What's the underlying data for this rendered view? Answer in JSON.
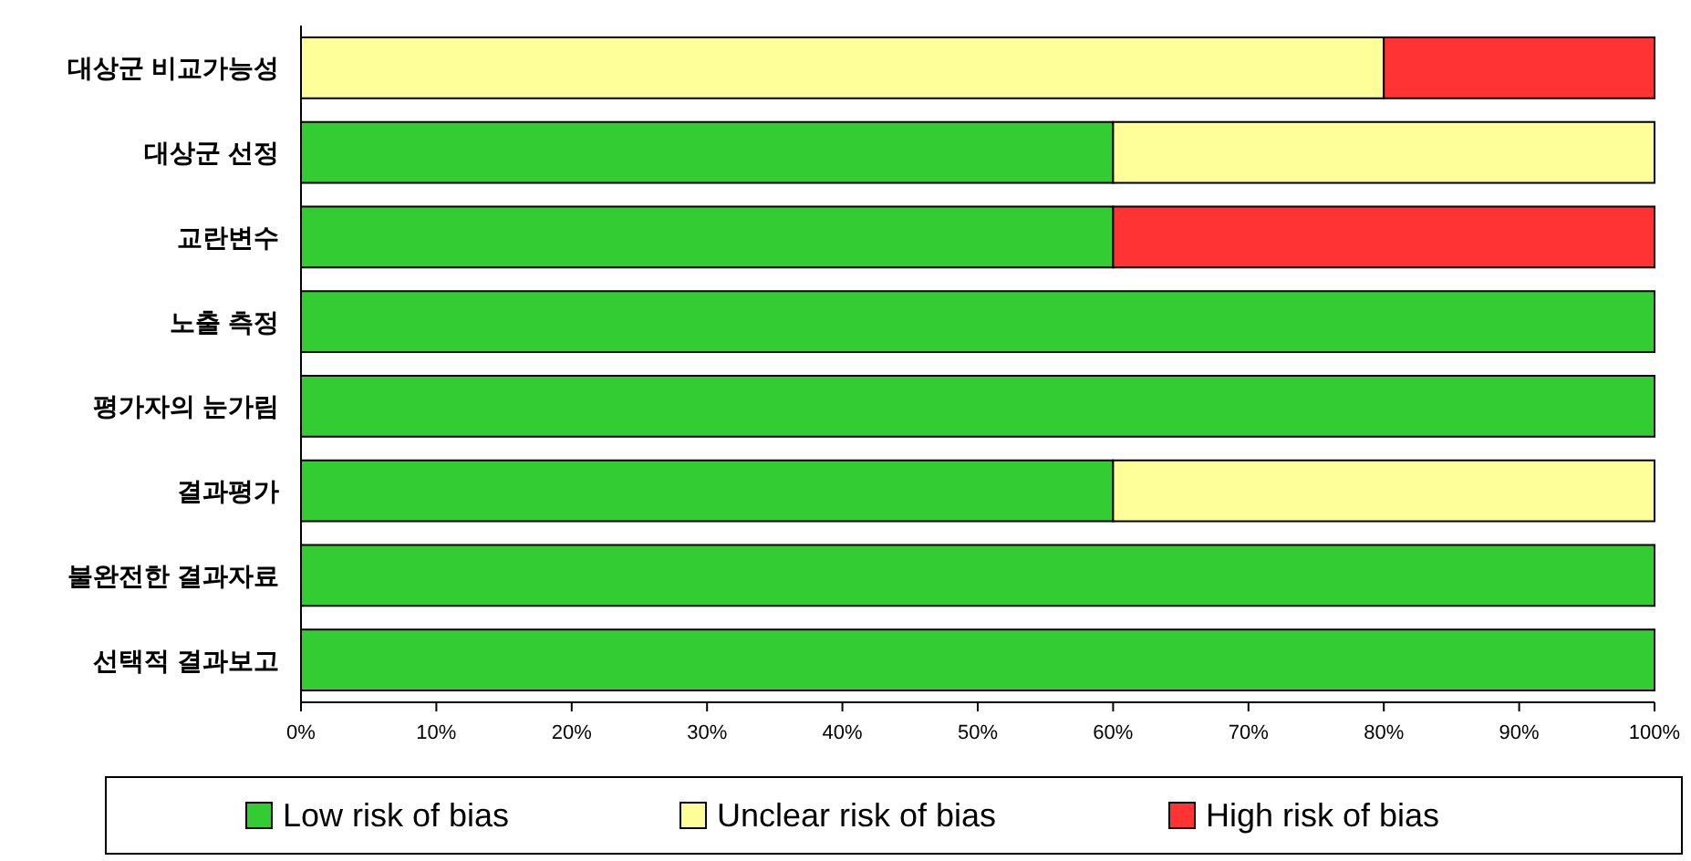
{
  "chart_data": {
    "type": "bar",
    "orientation": "horizontal",
    "stacked": true,
    "categories": [
      "대상군 비교가능성",
      "대상군 선정",
      "교란변수",
      "노출 측정",
      "평가자의 눈가림",
      "결과평가",
      "불완전한 결과자료",
      "선택적 결과보고"
    ],
    "series": [
      {
        "name": "Low risk of bias",
        "color": "#33cc33",
        "values": [
          0,
          60,
          60,
          100,
          100,
          60,
          100,
          100
        ]
      },
      {
        "name": "Unclear risk of bias",
        "color": "#ffff99",
        "values": [
          80,
          40,
          0,
          0,
          0,
          40,
          0,
          0
        ]
      },
      {
        "name": "High risk of bias",
        "color": "#ff3333",
        "values": [
          20,
          0,
          40,
          0,
          0,
          0,
          0,
          0
        ]
      }
    ],
    "xlim": [
      0,
      100
    ],
    "xticks": [
      {
        "value": 0,
        "label": "0%"
      },
      {
        "value": 10,
        "label": "10%"
      },
      {
        "value": 20,
        "label": "20%"
      },
      {
        "value": 30,
        "label": "30%"
      },
      {
        "value": 40,
        "label": "40%"
      },
      {
        "value": 50,
        "label": "50%"
      },
      {
        "value": 60,
        "label": "60%"
      },
      {
        "value": 70,
        "label": "70%"
      },
      {
        "value": 80,
        "label": "80%"
      },
      {
        "value": 90,
        "label": "90%"
      },
      {
        "value": 100,
        "label": "100%"
      }
    ],
    "grid": false,
    "legend": "bottom"
  }
}
